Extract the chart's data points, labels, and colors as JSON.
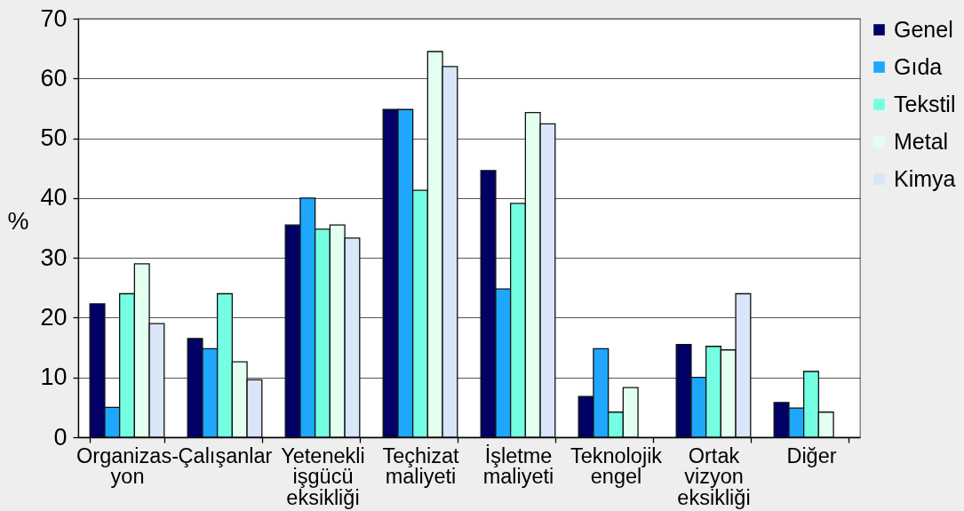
{
  "chart_data": {
    "type": "bar",
    "ylabel": "%",
    "categories": [
      "Organizas-yon",
      "Çalışanlar",
      "Yetenekli işgücü eksikliği",
      "Teçhizat maliyeti",
      "İşletme maliyeti",
      "Teknolojik engel",
      "Ortak vizyon eksikliği",
      "Diğer"
    ],
    "series": [
      {
        "name": "Genel",
        "color": "#000066",
        "values": [
          22.3,
          16.5,
          35.5,
          54.8,
          44.6,
          6.8,
          15.5,
          5.8
        ]
      },
      {
        "name": "Gıda",
        "color": "#1ea7fc",
        "values": [
          5,
          14.8,
          40,
          54.8,
          24.8,
          14.8,
          10,
          4.9
        ]
      },
      {
        "name": "Tekstil",
        "color": "#74ffe3",
        "values": [
          24,
          24,
          34.8,
          41.3,
          39.1,
          4.2,
          15.2,
          11
        ]
      },
      {
        "name": "Metal",
        "color": "#e2fff0",
        "values": [
          29,
          12.6,
          35.5,
          64.5,
          54.3,
          8.3,
          14.6,
          4.2
        ]
      },
      {
        "name": "Kimya",
        "color": "#d9e5f8",
        "values": [
          19,
          9.6,
          33.3,
          62,
          52.4,
          null,
          24,
          null
        ]
      }
    ],
    "ylim": [
      0,
      70
    ],
    "yticks": [
      0,
      10,
      20,
      30,
      40,
      50,
      60,
      70
    ],
    "grid": "y",
    "legend": "top right"
  }
}
